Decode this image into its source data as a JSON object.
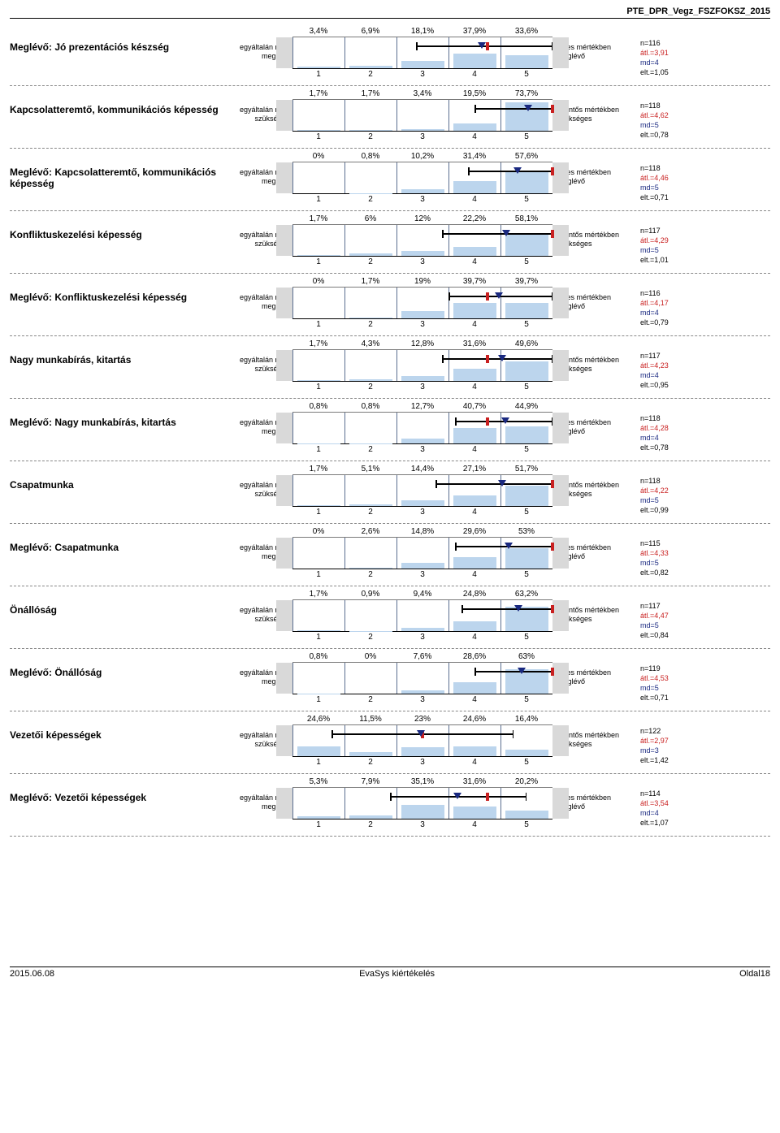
{
  "header": "PTE_DPR_Vegz_FSZFOKSZ_2015",
  "footer": {
    "left": "2015.06.08",
    "mid": "EvaSys kiértékelés",
    "right": "Oldal18"
  },
  "labels_m": {
    "left": "egyáltalán nem\nmeglévő",
    "right": "teljes mértékben\nmeglévő"
  },
  "labels_s": {
    "left": "egyáltalán nem\nszükséges",
    "right": "jelentős mértékben\nszükséges"
  },
  "axis": [
    "1",
    "2",
    "3",
    "4",
    "5"
  ],
  "items": [
    {
      "t": "Meglévő: Jó prezentációs készség",
      "lbl": "m",
      "p": [
        "3,4%",
        "6,9%",
        "18,1%",
        "37,9%",
        "33,6%"
      ],
      "v": [
        3.4,
        6.9,
        18.1,
        37.9,
        33.6
      ],
      "ci": [
        2.9,
        5.0
      ],
      "med": 4,
      "mean": 3.91,
      "n": "n=116",
      "a": "átl.=3,91",
      "m": "md=4",
      "e": "elt.=1,05"
    },
    {
      "t": "Kapcsolatteremtő, kommunikációs képesség",
      "lbl": "s",
      "p": [
        "1,7%",
        "1,7%",
        "3,4%",
        "19,5%",
        "73,7%"
      ],
      "v": [
        1.7,
        1.7,
        3.4,
        19.5,
        73.7
      ],
      "ci": [
        3.8,
        5.0
      ],
      "med": 5,
      "mean": 4.62,
      "n": "n=118",
      "a": "átl.=4,62",
      "m": "md=5",
      "e": "elt.=0,78"
    },
    {
      "t": "Meglévő: Kapcsolatteremtő, kommunikációs képesség",
      "lbl": "m",
      "p": [
        "0%",
        "0,8%",
        "10,2%",
        "31,4%",
        "57,6%"
      ],
      "v": [
        0,
        0.8,
        10.2,
        31.4,
        57.6
      ],
      "ci": [
        3.7,
        5.0
      ],
      "med": 5,
      "mean": 4.46,
      "n": "n=118",
      "a": "átl.=4,46",
      "m": "md=5",
      "e": "elt.=0,71"
    },
    {
      "t": "Konfliktuskezelési képesség",
      "lbl": "s",
      "p": [
        "1,7%",
        "6%",
        "12%",
        "22,2%",
        "58,1%"
      ],
      "v": [
        1.7,
        6,
        12,
        22.2,
        58.1
      ],
      "ci": [
        3.3,
        5.0
      ],
      "med": 5,
      "mean": 4.29,
      "n": "n=117",
      "a": "átl.=4,29",
      "m": "md=5",
      "e": "elt.=1,01"
    },
    {
      "t": "Meglévő: Konfliktuskezelési képesség",
      "lbl": "m",
      "p": [
        "0%",
        "1,7%",
        "19%",
        "39,7%",
        "39,7%"
      ],
      "v": [
        0,
        1.7,
        19,
        39.7,
        39.7
      ],
      "ci": [
        3.4,
        5.0
      ],
      "med": 4,
      "mean": 4.17,
      "n": "n=116",
      "a": "átl.=4,17",
      "m": "md=4",
      "e": "elt.=0,79"
    },
    {
      "t": "Nagy munkabírás, kitartás",
      "lbl": "s",
      "p": [
        "1,7%",
        "4,3%",
        "12,8%",
        "31,6%",
        "49,6%"
      ],
      "v": [
        1.7,
        4.3,
        12.8,
        31.6,
        49.6
      ],
      "ci": [
        3.3,
        5.0
      ],
      "med": 4,
      "mean": 4.23,
      "n": "n=117",
      "a": "átl.=4,23",
      "m": "md=4",
      "e": "elt.=0,95"
    },
    {
      "t": "Meglévő: Nagy munkabírás, kitartás",
      "lbl": "m",
      "p": [
        "0,8%",
        "0,8%",
        "12,7%",
        "40,7%",
        "44,9%"
      ],
      "v": [
        0.8,
        0.8,
        12.7,
        40.7,
        44.9
      ],
      "ci": [
        3.5,
        5.0
      ],
      "med": 4,
      "mean": 4.28,
      "n": "n=118",
      "a": "átl.=4,28",
      "m": "md=4",
      "e": "elt.=0,78"
    },
    {
      "t": "Csapatmunka",
      "lbl": "s",
      "p": [
        "1,7%",
        "5,1%",
        "14,4%",
        "27,1%",
        "51,7%"
      ],
      "v": [
        1.7,
        5.1,
        14.4,
        27.1,
        51.7
      ],
      "ci": [
        3.2,
        5.0
      ],
      "med": 5,
      "mean": 4.22,
      "n": "n=118",
      "a": "átl.=4,22",
      "m": "md=5",
      "e": "elt.=0,99"
    },
    {
      "t": "Meglévő: Csapatmunka",
      "lbl": "m",
      "p": [
        "0%",
        "2,6%",
        "14,8%",
        "29,6%",
        "53%"
      ],
      "v": [
        0,
        2.6,
        14.8,
        29.6,
        53
      ],
      "ci": [
        3.5,
        5.0
      ],
      "med": 5,
      "mean": 4.33,
      "n": "n=115",
      "a": "átl.=4,33",
      "m": "md=5",
      "e": "elt.=0,82"
    },
    {
      "t": "Önállóság",
      "lbl": "s",
      "p": [
        "1,7%",
        "0,9%",
        "9,4%",
        "24,8%",
        "63,2%"
      ],
      "v": [
        1.7,
        0.9,
        9.4,
        24.8,
        63.2
      ],
      "ci": [
        3.6,
        5.0
      ],
      "med": 5,
      "mean": 4.47,
      "n": "n=117",
      "a": "átl.=4,47",
      "m": "md=5",
      "e": "elt.=0,84"
    },
    {
      "t": "Meglévő: Önállóság",
      "lbl": "m",
      "p": [
        "0,8%",
        "0%",
        "7,6%",
        "28,6%",
        "63%"
      ],
      "v": [
        0.8,
        0,
        7.6,
        28.6,
        63
      ],
      "ci": [
        3.8,
        5.0
      ],
      "med": 5,
      "mean": 4.53,
      "n": "n=119",
      "a": "átl.=4,53",
      "m": "md=5",
      "e": "elt.=0,71"
    },
    {
      "t": "Vezetői képességek",
      "lbl": "s",
      "p": [
        "24,6%",
        "11,5%",
        "23%",
        "24,6%",
        "16,4%"
      ],
      "v": [
        24.6,
        11.5,
        23,
        24.6,
        16.4
      ],
      "ci": [
        1.6,
        4.4
      ],
      "med": 3,
      "mean": 2.97,
      "n": "n=122",
      "a": "átl.=2,97",
      "m": "md=3",
      "e": "elt.=1,42"
    },
    {
      "t": "Meglévő: Vezetői képességek",
      "lbl": "m",
      "p": [
        "5,3%",
        "7,9%",
        "35,1%",
        "31,6%",
        "20,2%"
      ],
      "v": [
        5.3,
        7.9,
        35.1,
        31.6,
        20.2
      ],
      "ci": [
        2.5,
        4.6
      ],
      "med": 4,
      "mean": 3.54,
      "n": "n=114",
      "a": "átl.=3,54",
      "m": "md=4",
      "e": "elt.=1,07"
    }
  ],
  "style": {
    "bar_color": "#bcd5ed",
    "grid_color": "#5b6e91",
    "gray": "#d9d9d9",
    "mean_color": "#1a2980",
    "med_color": "#c92020",
    "max_scale": 80
  }
}
